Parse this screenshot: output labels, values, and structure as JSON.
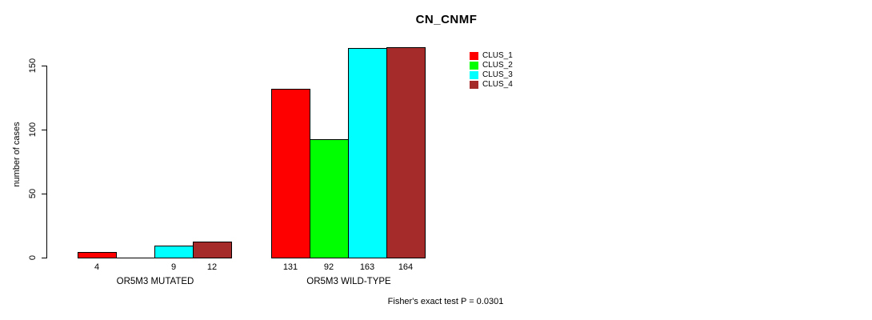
{
  "chart_data": {
    "type": "bar",
    "title": "CN_CNMF",
    "ylabel": "number of cases",
    "xlabel": "",
    "categories": [
      "OR5M3 MUTATED",
      "OR5M3 WILD-TYPE"
    ],
    "series": [
      {
        "name": "CLUS_1",
        "color": "#FF0000",
        "values": [
          4,
          131
        ]
      },
      {
        "name": "CLUS_2",
        "color": "#00FF00",
        "values": [
          0,
          92
        ]
      },
      {
        "name": "CLUS_3",
        "color": "#00FFFF",
        "values": [
          9,
          163
        ]
      },
      {
        "name": "CLUS_4",
        "color": "#A52A2A",
        "values": [
          12,
          164
        ]
      }
    ],
    "bar_labels": [
      [
        "4",
        "",
        "9",
        "12"
      ],
      [
        "131",
        "92",
        "163",
        "164"
      ]
    ],
    "yticks": [
      0,
      50,
      100,
      150
    ],
    "ylim": [
      0,
      164
    ],
    "grid": false,
    "legend_position": "top-right",
    "annotation": "Fisher's exact test P = 0.0301"
  }
}
